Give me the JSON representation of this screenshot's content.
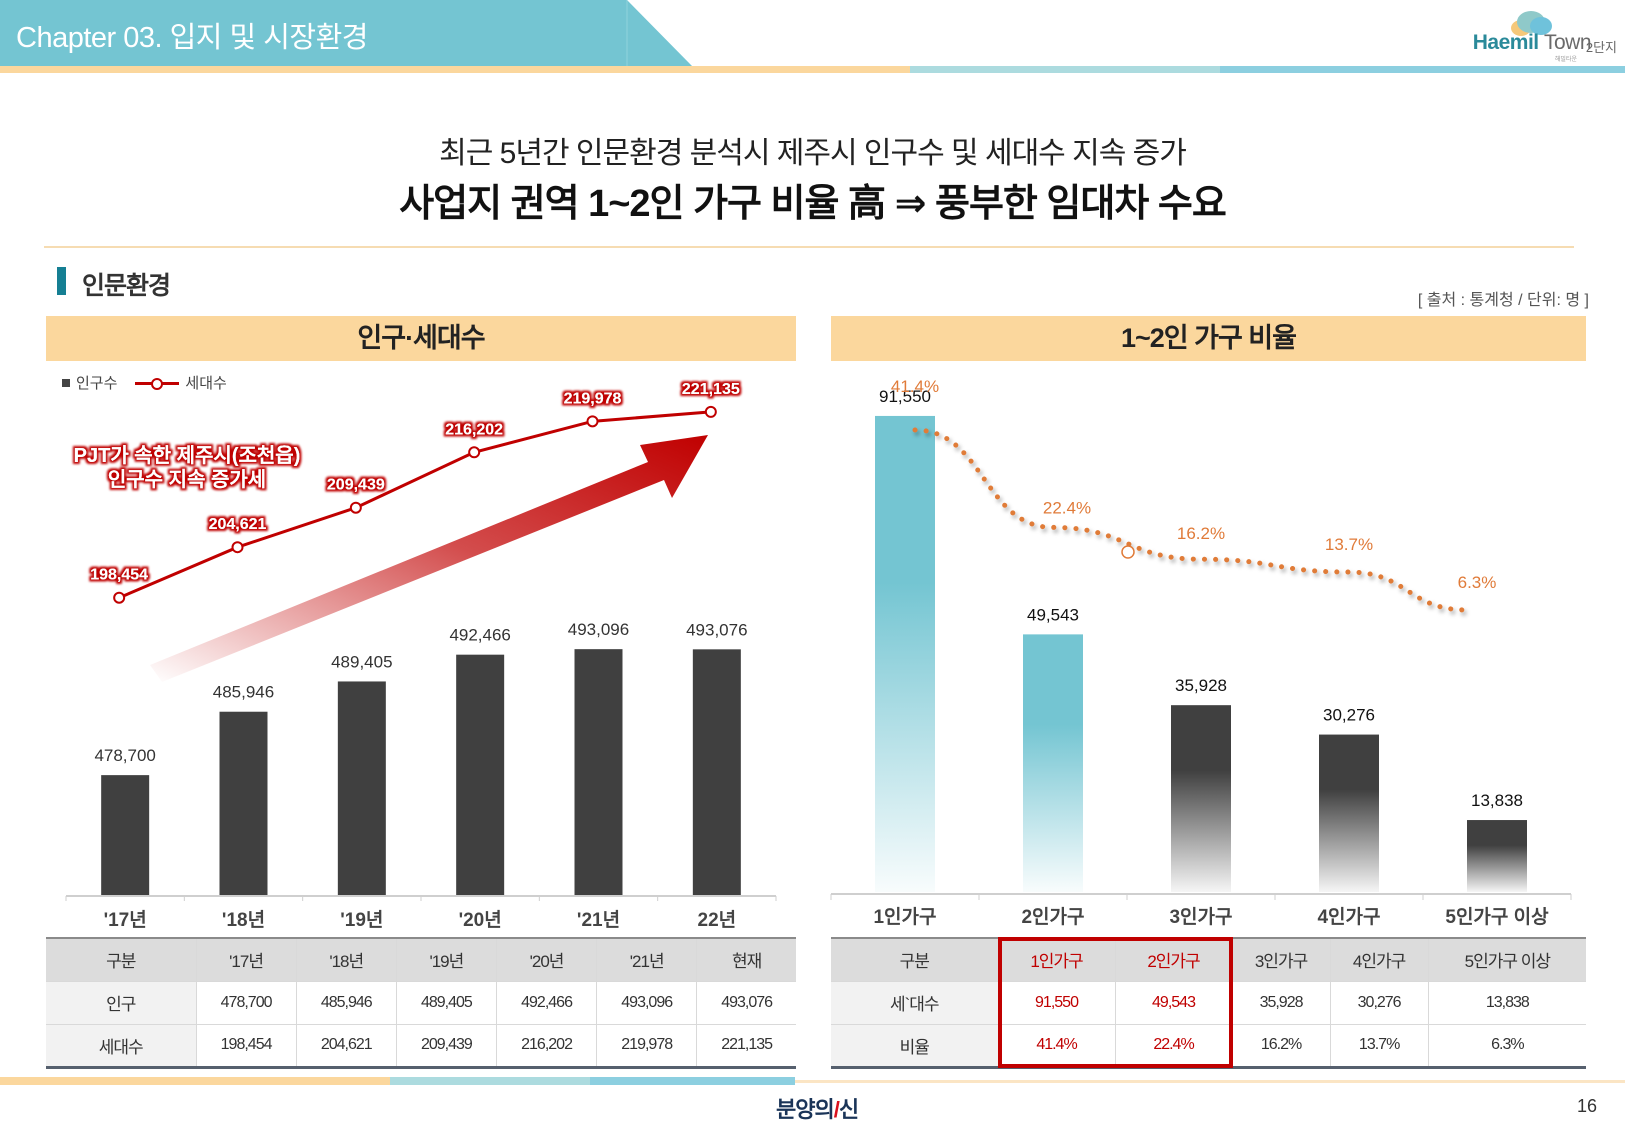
{
  "header": {
    "chapter_title": "Chapter 03. 입지 및 시장환경",
    "logo_brand": "Haemil",
    "logo_town": "Town",
    "logo_sub": "2단지",
    "logo_tiny": "해밀타운",
    "colors": {
      "banner": "#74c5d2",
      "stripe_yellow": "#fbd79d",
      "stripe_mint": "#acdbdf",
      "stripe_blue": "#8ccfe0"
    }
  },
  "headline": {
    "line1": "최근 5년간 인문환경 분석시 제주시 인구수 및 세대수 지속 증가",
    "line2": "사업지 권역 1~2인 가구 비율 高 ⇒ 풍부한 임대차 수요"
  },
  "section": {
    "title": "인문환경",
    "source_note": "[ 출처 : 통계청 / 단위: 명 ]"
  },
  "left_panel": {
    "header": "인구·세대수",
    "legend": {
      "bar": "인구수",
      "line": "세대수"
    },
    "annotation": [
      "PJT가 속한 제주시(조천읍)",
      "인구수 지속 증가세"
    ],
    "table": {
      "headers": [
        "구분",
        "'17년",
        "'18년",
        "'19년",
        "'20년",
        "'21년",
        "현재"
      ],
      "rows": [
        [
          "인구",
          "478,700",
          "485,946",
          "489,405",
          "492,466",
          "493,096",
          "493,076"
        ],
        [
          "세대수",
          "198,454",
          "204,621",
          "209,439",
          "216,202",
          "219,978",
          "221,135"
        ]
      ]
    }
  },
  "right_panel": {
    "header": "1~2인 가구 비율",
    "table": {
      "headers": [
        "구분",
        "1인가구",
        "2인가구",
        "3인가구",
        "4인가구",
        "5인가구 이상"
      ],
      "rows": [
        [
          "세`대수",
          "91,550",
          "49,543",
          "35,928",
          "30,276",
          "13,838"
        ],
        [
          "비율",
          "41.4%",
          "22.4%",
          "16.2%",
          "13.7%",
          "6.3%"
        ]
      ],
      "highlighted_columns": [
        "1인가구",
        "2인가구"
      ]
    }
  },
  "footer": {
    "logo_text": "분양의",
    "logo_accent": "신",
    "page_number": "16"
  },
  "chart_data": [
    {
      "type": "bar",
      "title": "인구·세대수",
      "categories": [
        "'17년",
        "'18년",
        "'19년",
        "'20년",
        "'21년",
        "22년"
      ],
      "series": [
        {
          "name": "인구수",
          "kind": "bar",
          "color": "#404040",
          "values": [
            478700,
            485946,
            489405,
            492466,
            493096,
            493076
          ]
        },
        {
          "name": "세대수",
          "kind": "line",
          "color": "#c00000",
          "values": [
            198454,
            204621,
            209439,
            216202,
            219978,
            221135
          ]
        }
      ],
      "bar_ylim": [
        465000,
        497000
      ],
      "line_ylim": [
        190000,
        226000
      ],
      "legend": "top-left",
      "grid": false
    },
    {
      "type": "bar",
      "title": "1~2인 가구 비율",
      "categories": [
        "1인가구",
        "2인가구",
        "3인가구",
        "4인가구",
        "5인가구 이상"
      ],
      "series": [
        {
          "name": "세대수",
          "kind": "bar",
          "colors": [
            "#74c5d2",
            "#74c5d2",
            "#404040",
            "#404040",
            "#404040"
          ],
          "values": [
            91550,
            49543,
            35928,
            30276,
            13838
          ]
        },
        {
          "name": "비율",
          "kind": "line-dotted",
          "color": "#e07b39",
          "values": [
            41.4,
            22.4,
            16.2,
            13.7,
            6.3
          ],
          "labels": [
            "41.4%",
            "22.4%",
            "16.2%",
            "13.7%",
            "6.3%"
          ]
        }
      ],
      "bar_ylim": [
        0,
        100000
      ],
      "legend": "none",
      "grid": false
    }
  ]
}
